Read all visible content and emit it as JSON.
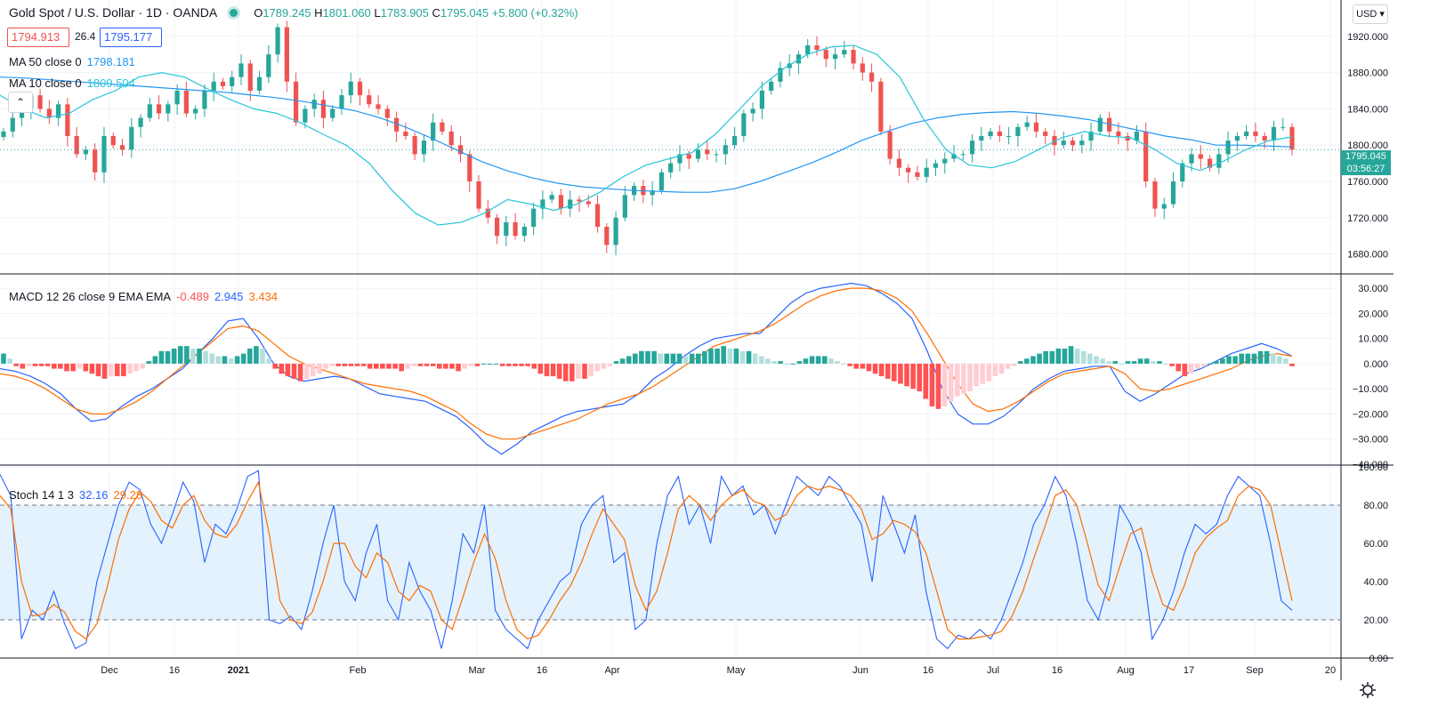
{
  "header": {
    "symbol_title": "Gold Spot / U.S. Dollar · 1D · OANDA",
    "ohlc": {
      "o_label": "O",
      "o": "1789.245",
      "h_label": "H",
      "h": "1801.060",
      "l_label": "L",
      "l": "1783.905",
      "c_label": "C",
      "c": "1795.045",
      "change": "+5.800 (+0.32%)"
    },
    "bid": "1794.913",
    "spread": "26.4",
    "ask": "1795.177",
    "currency": "USD"
  },
  "last_price_tag": {
    "price": "1795.045",
    "countdown": "03:56:27"
  },
  "colors": {
    "up": "#26a69a",
    "down": "#ef5350",
    "ma50": "#2196f3",
    "ma10": "#26c6da",
    "macd": "#2962ff",
    "signal": "#ff6d00",
    "stoch_k": "#2962ff",
    "stoch_d": "#ff6d00",
    "hist_up_strong": "#26a69a",
    "hist_up_weak": "#b2dfdb",
    "hist_down_strong": "#ff5252",
    "hist_down_weak": "#ffcdd2",
    "band_fill": "#e3f2fd"
  },
  "time_axis": [
    "Dec",
    "16",
    "2021",
    "Feb",
    "Mar",
    "16",
    "Apr",
    "May",
    "Jun",
    "16",
    "Jul",
    "16",
    "Aug",
    "17",
    "Sep",
    "20"
  ],
  "chart_data": [
    {
      "id": "price",
      "type": "candlestick",
      "ylim": [
        1660,
        1960
      ],
      "yticks": [
        "1680.000",
        "1720.000",
        "1760.000",
        "1800.000",
        "1840.000",
        "1880.000",
        "1920.000"
      ],
      "ohlc_anchor_close": [
        1815,
        1830,
        1840,
        1855,
        1840,
        1830,
        1845,
        1810,
        1790,
        1795,
        1770,
        1810,
        1800,
        1795,
        1820,
        1830,
        1845,
        1835,
        1845,
        1860,
        1835,
        1840,
        1860,
        1870,
        1865,
        1875,
        1890,
        1860,
        1875,
        1900,
        1930,
        1870,
        1825,
        1840,
        1850,
        1830,
        1840,
        1855,
        1870,
        1855,
        1845,
        1840,
        1830,
        1815,
        1810,
        1790,
        1805,
        1825,
        1815,
        1800,
        1790,
        1760,
        1730,
        1720,
        1700,
        1715,
        1700,
        1710,
        1730,
        1740,
        1745,
        1730,
        1740,
        1738,
        1735,
        1710,
        1690,
        1720,
        1745,
        1755,
        1745,
        1750,
        1770,
        1780,
        1790,
        1785,
        1795,
        1790,
        1790,
        1800,
        1810,
        1835,
        1840,
        1860,
        1870,
        1885,
        1890,
        1900,
        1910,
        1905,
        1895,
        1900,
        1905,
        1890,
        1880,
        1870,
        1815,
        1785,
        1775,
        1770,
        1765,
        1775,
        1780,
        1785,
        1790,
        1790,
        1805,
        1810,
        1815,
        1810,
        1810,
        1820,
        1825,
        1815,
        1810,
        1800,
        1805,
        1800,
        1805,
        1815,
        1830,
        1815,
        1810,
        1805,
        1815,
        1760,
        1730,
        1735,
        1760,
        1780,
        1790,
        1785,
        1775,
        1790,
        1805,
        1810,
        1815,
        1810,
        1805,
        1820,
        1820,
        1795
      ],
      "series": [
        {
          "name": "MA 50 close 0",
          "value": "1798.181"
        },
        {
          "name": "MA 10 close 0",
          "value": "1809.504"
        }
      ],
      "ma50_curve": [
        1875,
        1874,
        1872,
        1870,
        1868,
        1866,
        1864,
        1862,
        1860,
        1858,
        1855,
        1852,
        1848,
        1843,
        1838,
        1830,
        1820,
        1808,
        1795,
        1782,
        1772,
        1764,
        1758,
        1754,
        1752,
        1750,
        1749,
        1748,
        1748,
        1752,
        1760,
        1770,
        1780,
        1792,
        1805,
        1815,
        1824,
        1830,
        1834,
        1836,
        1837,
        1835,
        1832,
        1828,
        1822,
        1816,
        1810,
        1806,
        1800,
        1800,
        1799,
        1798
      ],
      "ma10_curve": [
        1855,
        1840,
        1830,
        1835,
        1850,
        1860,
        1875,
        1880,
        1875,
        1862,
        1850,
        1840,
        1835,
        1825,
        1812,
        1800,
        1780,
        1750,
        1725,
        1712,
        1715,
        1725,
        1740,
        1735,
        1728,
        1735,
        1748,
        1765,
        1778,
        1785,
        1792,
        1812,
        1838,
        1865,
        1885,
        1900,
        1908,
        1910,
        1900,
        1875,
        1830,
        1795,
        1778,
        1775,
        1782,
        1795,
        1808,
        1815,
        1810,
        1808,
        1796,
        1780,
        1772,
        1782,
        1795,
        1805,
        1809
      ]
    },
    {
      "id": "macd",
      "type": "line+histogram",
      "title": "MACD 12 26 close 9 EMA EMA",
      "ylim": [
        -40,
        35
      ],
      "yticks": [
        "30.000",
        "20.000",
        "10.000",
        "0.000",
        "−10.000",
        "−20.000",
        "−30.000",
        "−40.000"
      ],
      "values": {
        "hist": "-0.489",
        "macd": "2.945",
        "signal": "3.434"
      },
      "macd_curve": [
        -2,
        -3,
        -5,
        -8,
        -12,
        -18,
        -23,
        -22,
        -17,
        -13,
        -10,
        -6,
        -2,
        4,
        10,
        17,
        18,
        10,
        0,
        -5,
        -7,
        -6,
        -5,
        -6,
        -9,
        -12,
        -13,
        -14,
        -15,
        -18,
        -21,
        -26,
        -32,
        -36,
        -32,
        -27,
        -24,
        -21,
        -19,
        -18,
        -17,
        -16,
        -12,
        -6,
        -2,
        3,
        7,
        10,
        11,
        12,
        12,
        18,
        24,
        28,
        30,
        31,
        32,
        31,
        28,
        24,
        18,
        5,
        -10,
        -20,
        -24,
        -24,
        -21,
        -16,
        -10,
        -6,
        -3,
        -2,
        -1,
        -1,
        -11,
        -15,
        -12,
        -8,
        -4,
        -2,
        1,
        4,
        6,
        8,
        6,
        3
      ],
      "signal_curve": [
        -4,
        -5,
        -7,
        -10,
        -14,
        -18,
        -20,
        -20,
        -18,
        -15,
        -11,
        -6,
        -1,
        4,
        9,
        14,
        15,
        13,
        8,
        3,
        0,
        -2,
        -4,
        -6,
        -8,
        -9,
        -10,
        -11,
        -13,
        -16,
        -19,
        -24,
        -28,
        -30,
        -30,
        -28,
        -26,
        -24,
        -22,
        -19,
        -16,
        -14,
        -12,
        -9,
        -5,
        -1,
        3,
        7,
        9,
        11,
        13,
        16,
        20,
        24,
        27,
        29,
        30,
        30,
        29,
        26,
        21,
        12,
        2,
        -8,
        -16,
        -19,
        -18,
        -15,
        -11,
        -7,
        -4,
        -3,
        -2,
        -1,
        -4,
        -10,
        -11,
        -10,
        -8,
        -6,
        -4,
        -2,
        1,
        3,
        4,
        3
      ],
      "hist_bars": [
        4,
        2,
        -1,
        -2,
        -1,
        -1,
        -1,
        -1,
        -2,
        -2,
        -3,
        -3,
        -2,
        -3,
        -4,
        -5,
        -6,
        -5,
        -5,
        -5,
        -4,
        -3,
        -2,
        1,
        3,
        5,
        5,
        6,
        7,
        7,
        6,
        6,
        5,
        4,
        3,
        3,
        2,
        3,
        4,
        6,
        7,
        6,
        2,
        -2,
        -4,
        -5,
        -6,
        -7,
        -6,
        -5,
        -4,
        -2,
        -1,
        -1,
        -1,
        -1,
        -1,
        -1,
        -2,
        -2,
        -2,
        -2,
        -2,
        -3,
        -2,
        -1,
        -1,
        -1,
        -1,
        -2,
        -2,
        -2,
        -3,
        -2,
        -1,
        -1,
        0,
        0,
        0,
        -1,
        -1,
        -1,
        -1,
        -1,
        -2,
        -4,
        -5,
        -5,
        -6,
        -7,
        -7,
        -6,
        -6,
        -5,
        -3,
        -2,
        -1,
        1,
        2,
        3,
        4,
        5,
        5,
        5,
        4,
        4,
        4,
        4,
        3,
        4,
        4,
        5,
        6,
        6,
        7,
        6,
        6,
        5,
        5,
        4,
        3,
        2,
        1,
        1,
        0,
        0,
        1,
        2,
        3,
        3,
        3,
        2,
        1,
        0,
        -1,
        -2,
        -2,
        -3,
        -4,
        -5,
        -6,
        -7,
        -8,
        -9,
        -10,
        -11,
        -14,
        -17,
        -18,
        -17,
        -15,
        -13,
        -12,
        -11,
        -9,
        -8,
        -7,
        -5,
        -4,
        -2,
        -1,
        1,
        2,
        3,
        4,
        5,
        5,
        6,
        6,
        7,
        6,
        5,
        4,
        3,
        2,
        1,
        1,
        0,
        1,
        1,
        2,
        2,
        1,
        1,
        0,
        -1,
        -3,
        -5,
        -4,
        -2,
        -1,
        0,
        1,
        2,
        3,
        3,
        4,
        4,
        4,
        5,
        5,
        4,
        3,
        2,
        -1
      ],
      "hist_start_x": 2,
      "hist_step": 7.05
    },
    {
      "id": "stoch",
      "type": "line",
      "title": "Stoch 14 1 3",
      "ylim": [
        0,
        100
      ],
      "yticks": [
        "100.00",
        "80.00",
        "60.00",
        "40.00",
        "20.00",
        "0.00"
      ],
      "band": [
        20,
        80
      ],
      "values": {
        "k": "32.16",
        "d": "29.28"
      },
      "k_curve": [
        96,
        85,
        10,
        25,
        20,
        35,
        18,
        5,
        8,
        40,
        60,
        80,
        92,
        88,
        70,
        60,
        75,
        92,
        82,
        50,
        70,
        65,
        78,
        95,
        98,
        20,
        18,
        22,
        15,
        35,
        60,
        80,
        40,
        30,
        55,
        70,
        30,
        20,
        50,
        35,
        25,
        5,
        30,
        65,
        55,
        80,
        25,
        15,
        10,
        5,
        20,
        30,
        40,
        45,
        70,
        80,
        85,
        50,
        55,
        15,
        20,
        60,
        85,
        95,
        70,
        80,
        60,
        95,
        85,
        90,
        75,
        80,
        65,
        80,
        95,
        90,
        85,
        95,
        90,
        80,
        70,
        40,
        85,
        70,
        55,
        75,
        35,
        10,
        5,
        12,
        10,
        15,
        10,
        20,
        35,
        50,
        70,
        80,
        95,
        85,
        60,
        30,
        20,
        40,
        80,
        70,
        55,
        10,
        20,
        35,
        55,
        70,
        65,
        70,
        85,
        95,
        90,
        85,
        60,
        30,
        25
      ],
      "d_curve": [
        85,
        78,
        40,
        22,
        23,
        28,
        24,
        14,
        10,
        18,
        38,
        62,
        78,
        87,
        82,
        72,
        68,
        80,
        85,
        72,
        65,
        63,
        70,
        82,
        92,
        65,
        30,
        20,
        18,
        24,
        40,
        60,
        60,
        48,
        42,
        55,
        50,
        35,
        30,
        38,
        35,
        20,
        15,
        32,
        50,
        65,
        52,
        30,
        15,
        10,
        12,
        20,
        30,
        38,
        50,
        65,
        78,
        70,
        62,
        38,
        25,
        35,
        55,
        78,
        85,
        80,
        72,
        80,
        85,
        88,
        82,
        80,
        72,
        75,
        85,
        90,
        88,
        90,
        88,
        85,
        78,
        62,
        65,
        72,
        70,
        66,
        55,
        35,
        15,
        10,
        10,
        11,
        12,
        14,
        22,
        35,
        52,
        68,
        85,
        88,
        80,
        60,
        38,
        30,
        48,
        65,
        68,
        45,
        28,
        25,
        38,
        55,
        63,
        68,
        72,
        85,
        90,
        88,
        80,
        55,
        30
      ]
    }
  ]
}
